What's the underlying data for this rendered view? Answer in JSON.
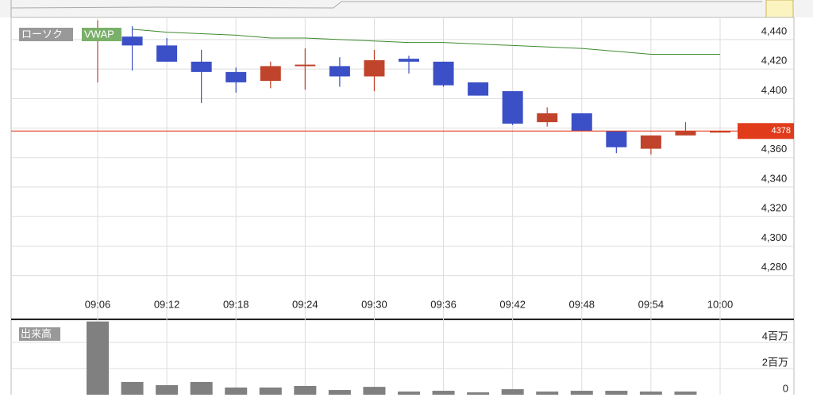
{
  "chart_data": [
    {
      "type": "candlestick",
      "categories": [
        "09:06",
        null,
        "09:12",
        null,
        "09:18",
        null,
        "09:24",
        null,
        "09:30",
        null,
        "09:36",
        null,
        "09:42",
        null,
        "09:48",
        null,
        "09:54",
        null,
        "10:00"
      ],
      "series": [
        {
          "name": "ローソク",
          "type": "candlestick",
          "up_color": "#c0442c",
          "down_color": "#3b4fc6",
          "open": [
            4445,
            4442,
            4436,
            4425,
            4418,
            4412,
            4422,
            4422,
            4415,
            4427,
            4425,
            4411,
            4405,
            4384,
            4390,
            4378,
            4366,
            4375,
            4377
          ],
          "high": [
            4453,
            4449,
            4441,
            4433,
            4421,
            4425,
            4434,
            4428,
            4433,
            4429,
            4425,
            4411,
            4405,
            4394,
            4390,
            4378,
            4375,
            4384,
            4378
          ],
          "low": [
            4411,
            4419,
            4425,
            4397,
            4404,
            4407,
            4406,
            4408,
            4405,
            4417,
            4408,
            4402,
            4382,
            4381,
            4378,
            4363,
            4362,
            4375,
            4377
          ],
          "close": [
            4445,
            4436,
            4425,
            4418,
            4411,
            4422,
            4423,
            4415,
            4426,
            4425,
            4409,
            4402,
            4383,
            4390,
            4378,
            4367,
            4375,
            4378,
            4378
          ]
        },
        {
          "name": "VWAP",
          "type": "line",
          "color": "#3e8a2e",
          "values": [
            null,
            4447,
            4445,
            4444,
            4443,
            4441,
            4441,
            4440,
            4439,
            4438,
            4438,
            4437,
            4436,
            4435,
            4434,
            4432,
            4430,
            4430,
            4430
          ]
        }
      ],
      "last_price": 4378,
      "last_price_color": "#e03c1c",
      "ylim": [
        4268,
        4455
      ],
      "yticks": [
        {
          "value": 4280,
          "label": "4,280"
        },
        {
          "value": 4300,
          "label": "4,300"
        },
        {
          "value": 4320,
          "label": "4,320"
        },
        {
          "value": 4340,
          "label": "4,340"
        },
        {
          "value": 4360,
          "label": "4,360"
        },
        {
          "value": 4380,
          "label": ""
        },
        {
          "value": 4400,
          "label": "4,400"
        },
        {
          "value": 4420,
          "label": "4,420"
        },
        {
          "value": 4440,
          "label": "4,440"
        }
      ],
      "grid": true
    },
    {
      "type": "bar",
      "title": "出来高",
      "color": "#808080",
      "values": [
        5600000,
        970000,
        730000,
        970000,
        550000,
        550000,
        670000,
        360000,
        600000,
        240000,
        300000,
        180000,
        420000,
        240000,
        300000,
        300000,
        240000,
        240000,
        null
      ],
      "ylim": [
        0,
        5640000
      ],
      "yticks": [
        0,
        {
          "value": 2000000,
          "label": "2百万"
        },
        {
          "value": 4000000,
          "label": "4百万"
        }
      ],
      "grid": true
    }
  ]
}
